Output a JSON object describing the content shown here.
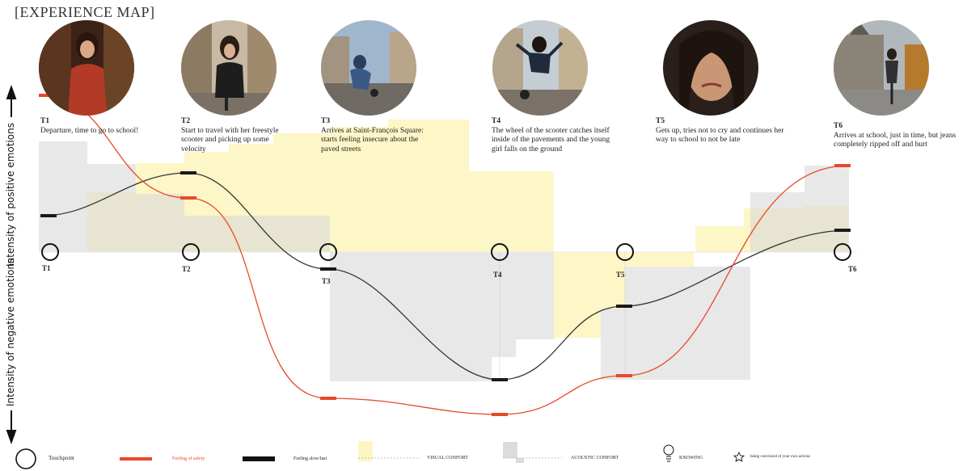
{
  "title": "[EXPERIENCE MAP]",
  "axis": {
    "positive": "Intensity of positive emotions",
    "negative": "Intensity of negative emotions"
  },
  "touchpoints": [
    {
      "id": "T1",
      "text": "Departure, time to go to school!"
    },
    {
      "id": "T2",
      "text": "Start to travel with her freestyle scooter and picking up some velocity"
    },
    {
      "id": "T3",
      "text": "Arrives at Saint-François Square: starts feeling insecure about the paved streets"
    },
    {
      "id": "T4",
      "text": "The wheel of the scooter catches itself inside of the pavements and the young girl falls on the ground"
    },
    {
      "id": "T5",
      "text": "Gets up, tries not to cry and continues her way to school to not be late"
    },
    {
      "id": "T6",
      "text": "Arrives at school, just in time, but jeans completely ripped off and hurt"
    }
  ],
  "legend": {
    "touchpoint": "Touchpoint",
    "safety": "Feeling of safety",
    "slow_fast": "Feeling slow/fast",
    "visual": "VISUAL CONFORT",
    "acoustic": "ACOUSTIC CONFORT",
    "knowing": "KNOWING",
    "convinced": "being convinced of your own actions"
  },
  "colors": {
    "safety": "#e8492a",
    "speed": "#333333",
    "visual": "#fdf6c4",
    "acoustic": "#e3e3e3"
  }
}
